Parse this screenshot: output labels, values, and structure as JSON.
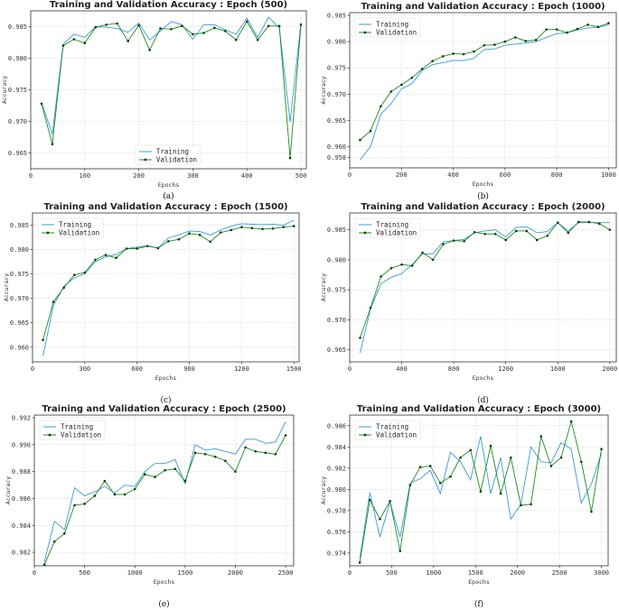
{
  "chart_data": [
    {
      "type": "line",
      "title": "Training and Validation Accuracy : Epoch (500)",
      "caption": "(a)",
      "xlabel": "Epochs",
      "ylabel": "Accuracy",
      "xlim": [
        0,
        510
      ],
      "ylim": [
        0.9625,
        0.9875
      ],
      "xticks": [
        "0",
        "100",
        "200",
        "300",
        "400",
        "500"
      ],
      "yticks": [
        "0.965",
        "0.970",
        "0.975",
        "0.980",
        "0.985"
      ],
      "grid": true,
      "legend_position": "lower-center",
      "series": [
        {
          "name": "Training",
          "color": "#3a9ad9",
          "x": [
            20,
            40,
            60,
            80,
            100,
            120,
            140,
            160,
            180,
            200,
            220,
            240,
            260,
            280,
            300,
            320,
            340,
            360,
            380,
            400,
            420,
            440,
            460,
            480,
            500
          ],
          "values": [
            0.973,
            0.968,
            0.9822,
            0.9838,
            0.9833,
            0.985,
            0.9849,
            0.9847,
            0.9841,
            0.9856,
            0.9829,
            0.9843,
            0.9858,
            0.9853,
            0.983,
            0.9853,
            0.9853,
            0.9845,
            0.9838,
            0.9863,
            0.9833,
            0.9865,
            0.9848,
            0.9699,
            0.9856
          ]
        },
        {
          "name": "Validation",
          "color": "#1f8a1f",
          "x": [
            20,
            40,
            60,
            80,
            100,
            120,
            140,
            160,
            180,
            200,
            220,
            240,
            260,
            280,
            300,
            320,
            340,
            360,
            380,
            400,
            420,
            440,
            460,
            480,
            500
          ],
          "values": [
            0.9728,
            0.9664,
            0.982,
            0.983,
            0.9824,
            0.9849,
            0.9853,
            0.9855,
            0.9827,
            0.9852,
            0.9813,
            0.9847,
            0.9846,
            0.9851,
            0.9838,
            0.984,
            0.9848,
            0.9843,
            0.9829,
            0.9858,
            0.9829,
            0.9851,
            0.9851,
            0.9642,
            0.9853
          ]
        }
      ]
    },
    {
      "type": "line",
      "title": "Training and Validation Accuracy : Epoch (1000)",
      "caption": "(b)",
      "xlabel": "Epochs",
      "ylabel": "Accuracy",
      "xlim": [
        0,
        1030
      ],
      "ylim": [
        0.956,
        0.9855
      ],
      "xticks": [
        "0",
        "200",
        "400",
        "600",
        "800",
        "1000"
      ],
      "yticks": [
        "0.958",
        "0.960",
        "0.965",
        "0.970",
        "0.975",
        "0.980",
        "0.985"
      ],
      "grid": true,
      "legend_position": "top-left",
      "series": [
        {
          "name": "Training",
          "color": "#3a9ad9",
          "x": [
            40,
            80,
            120,
            160,
            200,
            240,
            280,
            320,
            360,
            400,
            440,
            480,
            520,
            560,
            600,
            640,
            680,
            720,
            760,
            800,
            840,
            880,
            920,
            960,
            1000
          ],
          "values": [
            0.9575,
            0.96,
            0.9662,
            0.9682,
            0.971,
            0.972,
            0.9745,
            0.9756,
            0.976,
            0.9764,
            0.9764,
            0.9768,
            0.9785,
            0.9786,
            0.9793,
            0.9795,
            0.9797,
            0.98,
            0.9808,
            0.9815,
            0.9817,
            0.9822,
            0.9826,
            0.9827,
            0.9832
          ]
        },
        {
          "name": "Validation",
          "color": "#1f8a1f",
          "x": [
            40,
            80,
            120,
            160,
            200,
            240,
            280,
            320,
            360,
            400,
            440,
            480,
            520,
            560,
            600,
            640,
            680,
            720,
            760,
            800,
            840,
            880,
            920,
            960,
            1000
          ],
          "values": [
            0.9613,
            0.963,
            0.9677,
            0.9705,
            0.9718,
            0.9731,
            0.9748,
            0.9763,
            0.9772,
            0.9777,
            0.9776,
            0.9781,
            0.9793,
            0.9794,
            0.98,
            0.9808,
            0.9801,
            0.9803,
            0.9823,
            0.9823,
            0.9817,
            0.9824,
            0.9832,
            0.9828,
            0.9835
          ]
        }
      ]
    },
    {
      "type": "line",
      "title": "Training and Validation Accuracy : Epoch (1500)",
      "caption": "(c)",
      "xlabel": "Epochs",
      "ylabel": "Accuracy",
      "xlim": [
        0,
        1530
      ],
      "ylim": [
        0.957,
        0.9875
      ],
      "xticks": [
        "0",
        "300",
        "600",
        "900",
        "1200",
        "1500"
      ],
      "yticks": [
        "0.960",
        "0.965",
        "0.970",
        "0.975",
        "0.980",
        "0.985"
      ],
      "grid": true,
      "legend_position": "top-left",
      "series": [
        {
          "name": "Training",
          "color": "#3a9ad9",
          "x": [
            60,
            120,
            180,
            240,
            300,
            360,
            420,
            480,
            540,
            600,
            660,
            720,
            780,
            840,
            900,
            960,
            1020,
            1080,
            1140,
            1200,
            1260,
            1320,
            1380,
            1440,
            1500
          ],
          "values": [
            0.9582,
            0.9685,
            0.9725,
            0.9742,
            0.975,
            0.9775,
            0.9785,
            0.979,
            0.9802,
            0.9805,
            0.9808,
            0.9803,
            0.9824,
            0.983,
            0.9838,
            0.9837,
            0.983,
            0.984,
            0.9848,
            0.9853,
            0.9852,
            0.9851,
            0.9852,
            0.985,
            0.986
          ]
        },
        {
          "name": "Validation",
          "color": "#1f8a1f",
          "x": [
            60,
            120,
            180,
            240,
            300,
            360,
            420,
            480,
            540,
            600,
            660,
            720,
            780,
            840,
            900,
            960,
            1020,
            1080,
            1140,
            1200,
            1260,
            1320,
            1380,
            1440,
            1500
          ],
          "values": [
            0.9615,
            0.9693,
            0.9722,
            0.9748,
            0.9753,
            0.9779,
            0.9789,
            0.9783,
            0.9802,
            0.9802,
            0.9807,
            0.9803,
            0.9817,
            0.9821,
            0.9833,
            0.983,
            0.9816,
            0.9835,
            0.984,
            0.9846,
            0.9844,
            0.9842,
            0.9843,
            0.9846,
            0.9848
          ]
        }
      ]
    },
    {
      "type": "line",
      "title": "Training and Validation Accuracy : Epoch (2000)",
      "caption": "(d)",
      "xlabel": "Epochs",
      "ylabel": "Accuracy",
      "xlim": [
        0,
        2050
      ],
      "ylim": [
        0.963,
        0.9878
      ],
      "xticks": [
        "0",
        "400",
        "800",
        "1200",
        "1600",
        "2000"
      ],
      "yticks": [
        "0.965",
        "0.970",
        "0.975",
        "0.980",
        "0.985"
      ],
      "grid": true,
      "legend_position": "top-left",
      "series": [
        {
          "name": "Training",
          "color": "#3a9ad9",
          "x": [
            80,
            160,
            240,
            320,
            400,
            480,
            560,
            640,
            720,
            800,
            880,
            960,
            1040,
            1120,
            1200,
            1280,
            1360,
            1440,
            1520,
            1600,
            1680,
            1760,
            1840,
            1920,
            2000
          ],
          "values": [
            0.9645,
            0.9718,
            0.976,
            0.9771,
            0.9777,
            0.9792,
            0.981,
            0.981,
            0.983,
            0.9832,
            0.9834,
            0.9845,
            0.9848,
            0.985,
            0.9838,
            0.9854,
            0.9855,
            0.9845,
            0.9847,
            0.9862,
            0.9848,
            0.9862,
            0.9862,
            0.9862,
            0.9862
          ]
        },
        {
          "name": "Validation",
          "color": "#1f8a1f",
          "x": [
            80,
            160,
            240,
            320,
            400,
            480,
            560,
            640,
            720,
            800,
            880,
            960,
            1040,
            1120,
            1200,
            1280,
            1360,
            1440,
            1520,
            1600,
            1680,
            1760,
            1840,
            1920,
            2000
          ],
          "values": [
            0.967,
            0.972,
            0.9772,
            0.9786,
            0.9792,
            0.979,
            0.9812,
            0.98,
            0.9826,
            0.9832,
            0.9831,
            0.9846,
            0.9843,
            0.9843,
            0.9833,
            0.9848,
            0.9848,
            0.9833,
            0.984,
            0.9862,
            0.9845,
            0.9863,
            0.9863,
            0.986,
            0.985
          ]
        }
      ]
    },
    {
      "type": "line",
      "title": "Training and Validation Accuracy : Epoch (2500)",
      "caption": "(e)",
      "xlabel": "Epochs",
      "ylabel": "Accuracy",
      "xlim": [
        0,
        2580
      ],
      "ylim": [
        0.981,
        0.9922
      ],
      "xticks": [
        "0",
        "500",
        "1000",
        "1500",
        "2000",
        "2500"
      ],
      "yticks": [
        "0.982",
        "0.984",
        "0.986",
        "0.988",
        "0.990",
        "0.992"
      ],
      "grid": true,
      "legend_position": "top-left",
      "series": [
        {
          "name": "Training",
          "color": "#3a9ad9",
          "x": [
            100,
            200,
            300,
            400,
            500,
            600,
            700,
            800,
            900,
            1000,
            1100,
            1200,
            1300,
            1400,
            1500,
            1600,
            1700,
            1800,
            1900,
            2000,
            2100,
            2200,
            2300,
            2400,
            2500
          ],
          "values": [
            0.9813,
            0.9843,
            0.9837,
            0.9868,
            0.9862,
            0.9865,
            0.9869,
            0.9864,
            0.987,
            0.9869,
            0.988,
            0.9886,
            0.9886,
            0.9889,
            0.9871,
            0.99,
            0.9896,
            0.9897,
            0.9895,
            0.9893,
            0.9904,
            0.9904,
            0.9901,
            0.9902,
            0.9917
          ]
        },
        {
          "name": "Validation",
          "color": "#1f8a1f",
          "x": [
            100,
            200,
            300,
            400,
            500,
            600,
            700,
            800,
            900,
            1000,
            1100,
            1200,
            1300,
            1400,
            1500,
            1600,
            1700,
            1800,
            1900,
            2000,
            2100,
            2200,
            2300,
            2400,
            2500
          ],
          "values": [
            0.9811,
            0.9828,
            0.9834,
            0.9855,
            0.9856,
            0.9862,
            0.9873,
            0.9863,
            0.9863,
            0.9867,
            0.9878,
            0.9876,
            0.9881,
            0.9882,
            0.9873,
            0.9894,
            0.9893,
            0.9891,
            0.9888,
            0.988,
            0.9898,
            0.9895,
            0.9894,
            0.9893,
            0.9907
          ]
        }
      ]
    },
    {
      "type": "line",
      "title": "Training and Validation Accuracy : Epoch (3000)",
      "caption": "(f)",
      "xlabel": "Epochs",
      "ylabel": "Accuracy",
      "xlim": [
        0,
        3080
      ],
      "ylim": [
        0.9728,
        0.987
      ],
      "xticks": [
        "0",
        "500",
        "1000",
        "1500",
        "2000",
        "2500",
        "3000"
      ],
      "yticks": [
        "0.974",
        "0.976",
        "0.978",
        "0.980",
        "0.982",
        "0.984",
        "0.986"
      ],
      "grid": true,
      "legend_position": "top-left",
      "series": [
        {
          "name": "Training",
          "color": "#3a9ad9",
          "x": [
            120,
            240,
            360,
            480,
            600,
            720,
            840,
            960,
            1080,
            1200,
            1320,
            1440,
            1560,
            1680,
            1800,
            1920,
            2040,
            2160,
            2280,
            2400,
            2520,
            2640,
            2760,
            2880,
            3000
          ],
          "values": [
            0.9735,
            0.9797,
            0.9755,
            0.9788,
            0.9755,
            0.9806,
            0.981,
            0.9818,
            0.9796,
            0.9835,
            0.9826,
            0.9809,
            0.985,
            0.9796,
            0.983,
            0.9772,
            0.9786,
            0.984,
            0.9826,
            0.9825,
            0.9844,
            0.9838,
            0.9787,
            0.9805,
            0.9834
          ]
        },
        {
          "name": "Validation",
          "color": "#1f8a1f",
          "x": [
            120,
            240,
            360,
            480,
            600,
            720,
            840,
            960,
            1080,
            1200,
            1320,
            1440,
            1560,
            1680,
            1800,
            1920,
            2040,
            2160,
            2280,
            2400,
            2520,
            2640,
            2760,
            2880,
            3000
          ],
          "values": [
            0.9731,
            0.979,
            0.9772,
            0.9789,
            0.9742,
            0.9804,
            0.9821,
            0.9822,
            0.9806,
            0.9812,
            0.983,
            0.9837,
            0.9798,
            0.9841,
            0.9796,
            0.983,
            0.9785,
            0.9786,
            0.985,
            0.9822,
            0.983,
            0.9864,
            0.9826,
            0.9779,
            0.9838
          ]
        }
      ]
    }
  ]
}
